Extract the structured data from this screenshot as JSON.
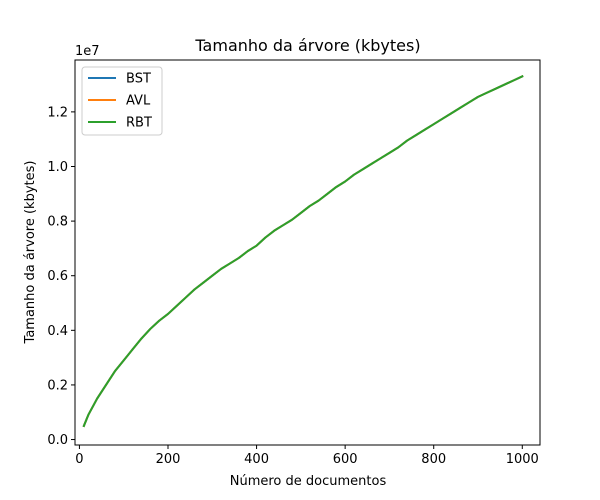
{
  "chart_data": {
    "type": "line",
    "title": "Tamanho da árvore (kbytes)",
    "xlabel": "Número de documentos",
    "ylabel": "Tamanho da árvore (kbytes)",
    "y_multiplier_label": "1e7",
    "y_multiplier": 10000000,
    "xlim": [
      -10,
      1040
    ],
    "ylim": [
      -0.02,
      1.39
    ],
    "x_ticks": [
      {
        "value": 0,
        "label": "0"
      },
      {
        "value": 200,
        "label": "200"
      },
      {
        "value": 400,
        "label": "400"
      },
      {
        "value": 600,
        "label": "600"
      },
      {
        "value": 800,
        "label": "800"
      },
      {
        "value": 1000,
        "label": "1000"
      }
    ],
    "y_ticks": [
      {
        "value": 0.0,
        "label": "0.0"
      },
      {
        "value": 0.2,
        "label": "0.2"
      },
      {
        "value": 0.4,
        "label": "0.4"
      },
      {
        "value": 0.6,
        "label": "0.6"
      },
      {
        "value": 0.8,
        "label": "0.8"
      },
      {
        "value": 1.0,
        "label": "1.0"
      },
      {
        "value": 1.2,
        "label": "1.2"
      }
    ],
    "grid": false,
    "legend_position": "top-left",
    "x": [
      10,
      20,
      40,
      60,
      80,
      100,
      120,
      140,
      160,
      180,
      200,
      220,
      240,
      260,
      280,
      300,
      320,
      340,
      360,
      380,
      400,
      420,
      440,
      460,
      480,
      500,
      520,
      540,
      560,
      580,
      600,
      620,
      640,
      660,
      680,
      700,
      720,
      740,
      760,
      780,
      800,
      820,
      840,
      860,
      880,
      900,
      920,
      940,
      960,
      980,
      1000
    ],
    "series": [
      {
        "name": "BST",
        "color": "#1f77b4",
        "values": [
          0.05,
          0.09,
          0.15,
          0.2,
          0.25,
          0.29,
          0.33,
          0.37,
          0.405,
          0.435,
          0.46,
          0.49,
          0.52,
          0.55,
          0.575,
          0.6,
          0.625,
          0.645,
          0.665,
          0.69,
          0.71,
          0.74,
          0.765,
          0.785,
          0.805,
          0.83,
          0.855,
          0.875,
          0.9,
          0.925,
          0.945,
          0.97,
          0.99,
          1.01,
          1.03,
          1.05,
          1.07,
          1.095,
          1.115,
          1.135,
          1.155,
          1.175,
          1.195,
          1.215,
          1.235,
          1.255,
          1.27,
          1.285,
          1.3,
          1.315,
          1.33
        ]
      },
      {
        "name": "AVL",
        "color": "#ff7f0e",
        "values": [
          0.05,
          0.09,
          0.15,
          0.2,
          0.25,
          0.29,
          0.33,
          0.37,
          0.405,
          0.435,
          0.46,
          0.49,
          0.52,
          0.55,
          0.575,
          0.6,
          0.625,
          0.645,
          0.665,
          0.69,
          0.71,
          0.74,
          0.765,
          0.785,
          0.805,
          0.83,
          0.855,
          0.875,
          0.9,
          0.925,
          0.945,
          0.97,
          0.99,
          1.01,
          1.03,
          1.05,
          1.07,
          1.095,
          1.115,
          1.135,
          1.155,
          1.175,
          1.195,
          1.215,
          1.235,
          1.255,
          1.27,
          1.285,
          1.3,
          1.315,
          1.33
        ]
      },
      {
        "name": "RBT",
        "color": "#2ca02c",
        "values": [
          0.05,
          0.09,
          0.15,
          0.2,
          0.25,
          0.29,
          0.33,
          0.37,
          0.405,
          0.435,
          0.46,
          0.49,
          0.52,
          0.55,
          0.575,
          0.6,
          0.625,
          0.645,
          0.665,
          0.69,
          0.71,
          0.74,
          0.765,
          0.785,
          0.805,
          0.83,
          0.855,
          0.875,
          0.9,
          0.925,
          0.945,
          0.97,
          0.99,
          1.01,
          1.03,
          1.05,
          1.07,
          1.095,
          1.115,
          1.135,
          1.155,
          1.175,
          1.195,
          1.215,
          1.235,
          1.255,
          1.27,
          1.285,
          1.3,
          1.315,
          1.33
        ]
      }
    ]
  }
}
